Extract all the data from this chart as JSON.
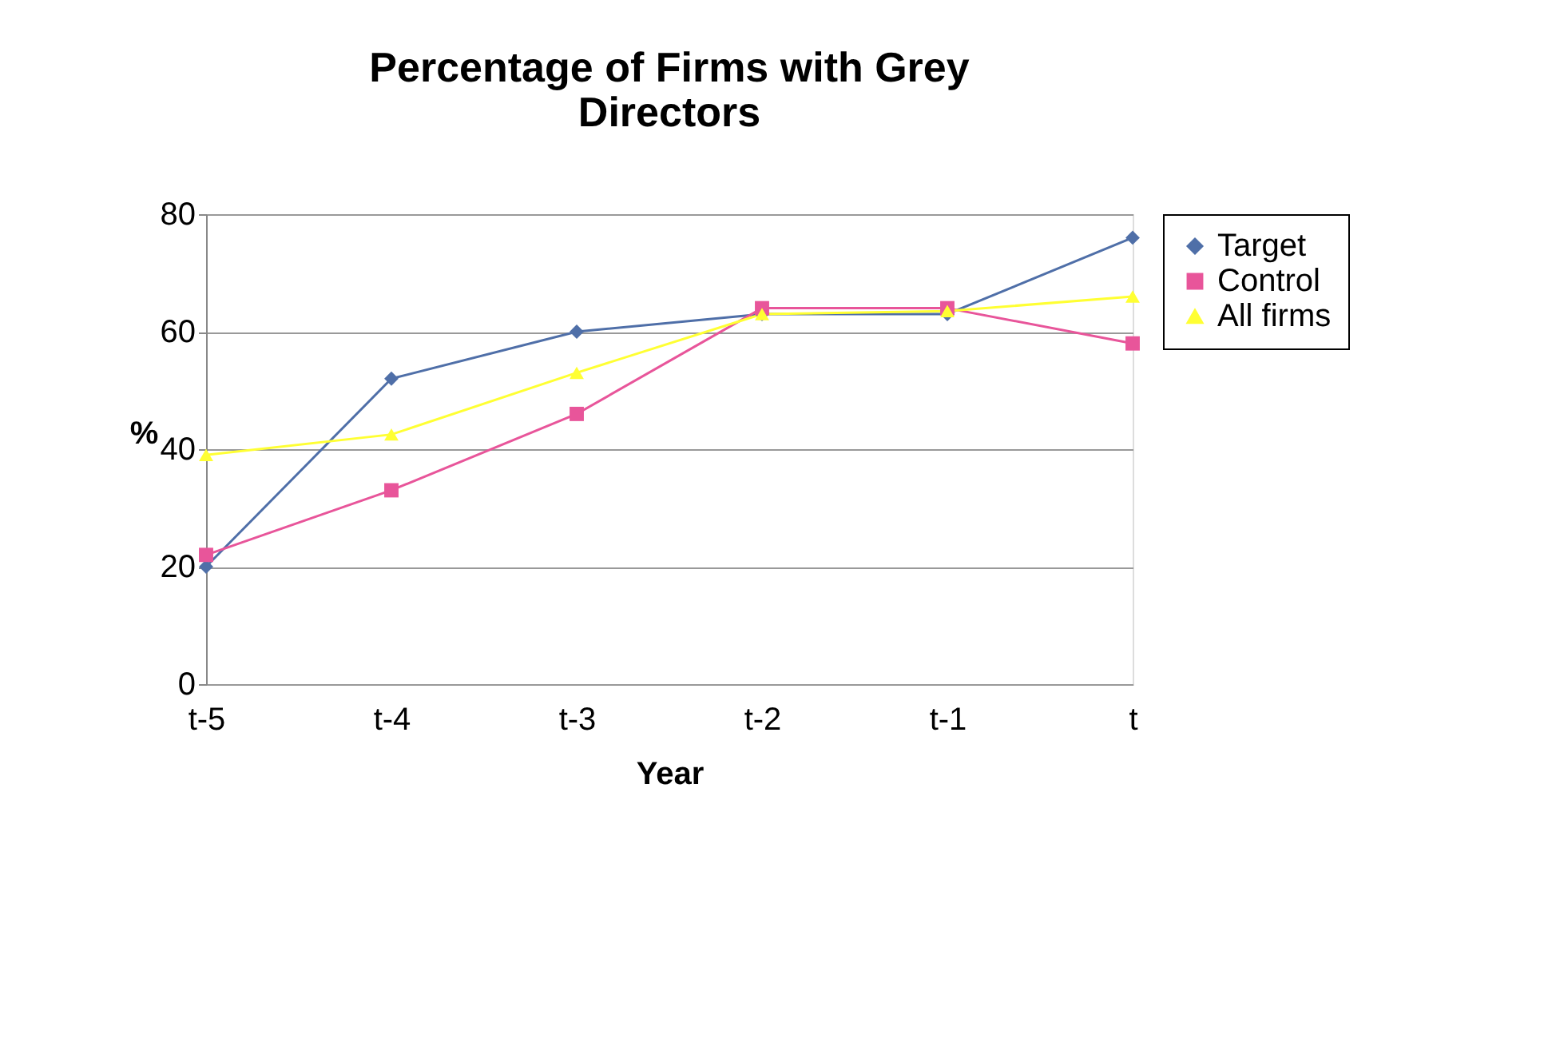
{
  "chart_data": {
    "type": "line",
    "title": "Percentage of Firms with Grey Directors",
    "xlabel": "Year",
    "ylabel": "%",
    "categories": [
      "t-5",
      "t-4",
      "t-3",
      "t-2",
      "t-1",
      "t"
    ],
    "series": [
      {
        "name": "Target",
        "color": "#4f6fa8",
        "marker": "diamond",
        "values": [
          20,
          52,
          60,
          63,
          63,
          76
        ]
      },
      {
        "name": "Control",
        "color": "#e8559a",
        "marker": "square",
        "values": [
          22,
          33,
          46,
          64,
          64,
          58
        ]
      },
      {
        "name": "All firms",
        "color": "#ffff33",
        "marker": "triangle",
        "values": [
          39,
          42.5,
          53,
          63,
          63.5,
          66
        ]
      }
    ],
    "ylim": [
      0,
      80
    ],
    "yticks": [
      0,
      20,
      40,
      60,
      80
    ],
    "grid": "y",
    "legend": "right",
    "line_style": "solid"
  }
}
